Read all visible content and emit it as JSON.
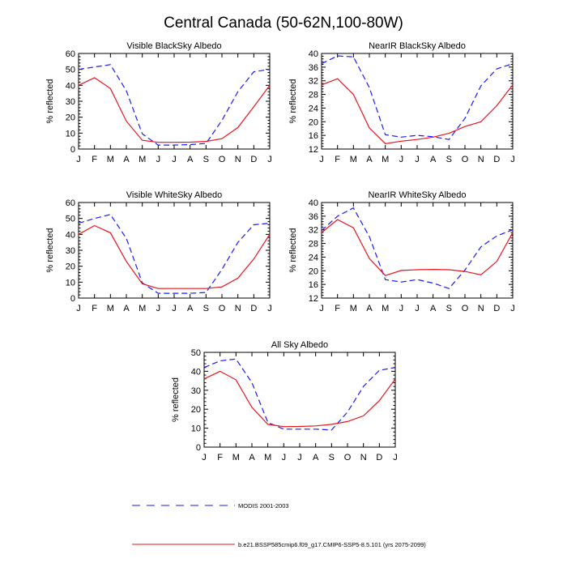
{
  "title": "Central Canada (50-62N,100-80W)",
  "legend": [
    {
      "name": "MODIS 2001-2003",
      "color": "#1a1aff",
      "dash": "dashed"
    },
    {
      "name": "b.e21.BSSP585cmip6.f09_g17.CMIP6-SSP5-8.5.101 (yrs 2075-2099)",
      "color": "#e8141e",
      "dash": "solid"
    }
  ],
  "chart_data": [
    {
      "type": "line",
      "title": "Visible BlackSky Albedo",
      "ylabel": "% reflected",
      "categories": [
        "J",
        "F",
        "M",
        "A",
        "M",
        "J",
        "J",
        "A",
        "S",
        "O",
        "N",
        "D",
        "J"
      ],
      "ylim": [
        0,
        60
      ],
      "yticks": [
        0,
        10,
        20,
        30,
        40,
        50,
        60
      ],
      "series": [
        {
          "name": "MODIS 2001-2003",
          "values": [
            50.0,
            51.5,
            53.0,
            36.5,
            9.5,
            2.5,
            2.5,
            2.8,
            3.5,
            18.0,
            36.0,
            48.5,
            50.0
          ]
        },
        {
          "name": "b.e21.BSSP585cmip6.f09_g17.CMIP6-SSP5-8.5.101 (yrs 2075-2099)",
          "values": [
            40.0,
            44.8,
            38.0,
            17.5,
            5.5,
            4.2,
            4.2,
            4.3,
            4.8,
            6.5,
            13.5,
            26.5,
            40.0
          ]
        }
      ]
    },
    {
      "type": "line",
      "title": "NearIR BlackSky Albedo",
      "ylabel": "% reflected",
      "categories": [
        "J",
        "F",
        "M",
        "A",
        "M",
        "J",
        "J",
        "A",
        "S",
        "O",
        "N",
        "D",
        "J"
      ],
      "ylim": [
        12,
        40
      ],
      "yticks": [
        12,
        16,
        20,
        24,
        28,
        32,
        36,
        40
      ],
      "series": [
        {
          "name": "MODIS 2001-2003",
          "values": [
            37.0,
            39.3,
            39.0,
            30.0,
            16.2,
            15.5,
            16.0,
            15.6,
            14.8,
            21.0,
            30.5,
            35.5,
            37.0
          ]
        },
        {
          "name": "b.e21.BSSP585cmip6.f09_g17.CMIP6-SSP5-8.5.101 (yrs 2075-2099)",
          "values": [
            30.8,
            32.6,
            28.0,
            18.2,
            13.6,
            14.3,
            14.8,
            15.5,
            16.6,
            18.6,
            20.0,
            24.7,
            30.8
          ]
        }
      ]
    },
    {
      "type": "line",
      "title": "Visible WhiteSky Albedo",
      "ylabel": "% reflected",
      "categories": [
        "J",
        "F",
        "M",
        "A",
        "M",
        "J",
        "J",
        "A",
        "S",
        "O",
        "N",
        "D",
        "J"
      ],
      "ylim": [
        0,
        60
      ],
      "yticks": [
        0,
        10,
        20,
        30,
        40,
        50,
        60
      ],
      "series": [
        {
          "name": "MODIS 2001-2003",
          "values": [
            47.0,
            50.0,
            52.5,
            37.5,
            9.5,
            3.0,
            3.0,
            3.0,
            3.5,
            18.0,
            35.0,
            46.0,
            47.0
          ]
        },
        {
          "name": "b.e21.BSSP585cmip6.f09_g17.CMIP6-SSP5-8.5.101 (yrs 2075-2099)",
          "values": [
            40.0,
            45.5,
            41.0,
            23.0,
            9.0,
            6.0,
            6.0,
            6.0,
            6.0,
            7.0,
            12.5,
            24.5,
            40.0
          ]
        }
      ]
    },
    {
      "type": "line",
      "title": "NearIR WhiteSky Albedo",
      "ylabel": "% reflected",
      "categories": [
        "J",
        "F",
        "M",
        "A",
        "M",
        "J",
        "J",
        "A",
        "S",
        "O",
        "N",
        "D",
        "J"
      ],
      "ylim": [
        12,
        40
      ],
      "yticks": [
        12,
        16,
        20,
        24,
        28,
        32,
        36,
        40
      ],
      "series": [
        {
          "name": "MODIS 2001-2003",
          "values": [
            31.8,
            36.0,
            38.4,
            30.0,
            17.4,
            16.7,
            17.4,
            16.4,
            14.8,
            20.2,
            27.0,
            30.2,
            32.0
          ]
        },
        {
          "name": "b.e21.BSSP585cmip6.f09_g17.CMIP6-SSP5-8.5.101 (yrs 2075-2099)",
          "values": [
            31.2,
            35.0,
            32.6,
            23.6,
            18.6,
            20.1,
            20.3,
            20.4,
            20.3,
            19.8,
            18.8,
            22.7,
            31.2
          ]
        }
      ]
    },
    {
      "type": "line",
      "title": "All Sky Albedo",
      "ylabel": "% reflected",
      "categories": [
        "J",
        "F",
        "M",
        "A",
        "M",
        "J",
        "J",
        "A",
        "S",
        "O",
        "N",
        "D",
        "J"
      ],
      "ylim": [
        0,
        50
      ],
      "yticks": [
        0,
        10,
        20,
        30,
        40,
        50
      ],
      "series": [
        {
          "name": "MODIS 2001-2003",
          "values": [
            42.0,
            45.5,
            46.5,
            34.0,
            13.0,
            9.5,
            9.5,
            9.5,
            9.0,
            18.5,
            32.0,
            40.5,
            42.0
          ]
        },
        {
          "name": "b.e21.BSSP585cmip6.f09_g17.CMIP6-SSP5-8.5.101 (yrs 2075-2099)",
          "values": [
            36.0,
            40.0,
            35.5,
            21.0,
            12.0,
            10.8,
            10.9,
            11.2,
            12.0,
            13.5,
            16.5,
            24.5,
            36.0
          ]
        }
      ]
    }
  ]
}
